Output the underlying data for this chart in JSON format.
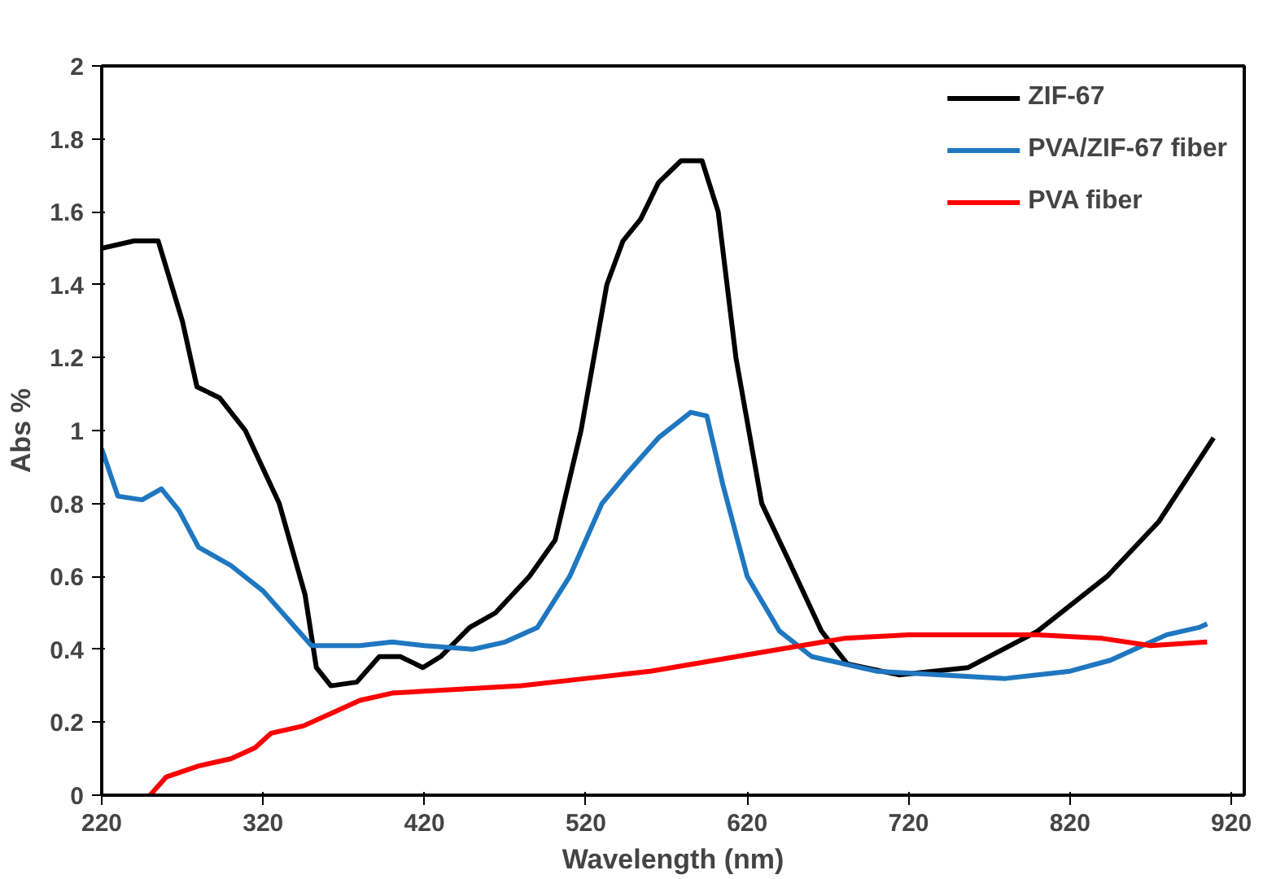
{
  "chart_data": {
    "type": "line",
    "xlabel": "Wavelength (nm)",
    "ylabel": "Abs %",
    "xlim": [
      220,
      928
    ],
    "xticks": [
      220,
      320,
      420,
      520,
      620,
      720,
      820,
      920
    ],
    "ylim": [
      0,
      2
    ],
    "yticks": [
      0,
      {
        "value": 0.2,
        "label": "0.2"
      },
      {
        "value": 0.4,
        "label": "0.4"
      },
      {
        "value": 0.6,
        "label": "0.6"
      },
      {
        "value": 0.8,
        "label": "0.8"
      },
      1,
      {
        "value": 1.2,
        "label": "1.2"
      },
      {
        "value": 1.4,
        "label": "1.4"
      },
      {
        "value": 1.6,
        "label": "1.6"
      },
      {
        "value": 1.8,
        "label": "1.8"
      },
      2
    ],
    "grid": false,
    "legend": "top right",
    "line_style": "solid",
    "marker": "none",
    "series": [
      {
        "name": "ZIF-67",
        "color": "#000000",
        "x": [
          220,
          240,
          255,
          270,
          279,
          293,
          309,
          330,
          346,
          353,
          362,
          378,
          392,
          405,
          419,
          430,
          448,
          464,
          485,
          501,
          517,
          533,
          543,
          554,
          565,
          579,
          592,
          602,
          613,
          629,
          645,
          666,
          682,
          714,
          757,
          800,
          843,
          875,
          909
        ],
        "values": [
          1.5,
          1.52,
          1.52,
          1.3,
          1.12,
          1.09,
          1.0,
          0.8,
          0.55,
          0.35,
          0.3,
          0.31,
          0.38,
          0.38,
          0.35,
          0.38,
          0.46,
          0.5,
          0.6,
          0.7,
          1.0,
          1.4,
          1.52,
          1.58,
          1.68,
          1.74,
          1.74,
          1.6,
          1.2,
          0.8,
          0.65,
          0.45,
          0.36,
          0.33,
          0.35,
          0.45,
          0.6,
          0.75,
          0.98
        ]
      },
      {
        "name": "PVA/ZIF-67 fiber",
        "color": "#1f77c0",
        "x": [
          220,
          230,
          245,
          257,
          268,
          280,
          300,
          320,
          340,
          350,
          380,
          400,
          420,
          450,
          470,
          490,
          510,
          530,
          545,
          565,
          585,
          595,
          605,
          620,
          640,
          660,
          700,
          780,
          820,
          845,
          860,
          880,
          900,
          905
        ],
        "values": [
          0.95,
          0.82,
          0.81,
          0.84,
          0.78,
          0.68,
          0.63,
          0.56,
          0.46,
          0.41,
          0.41,
          0.42,
          0.41,
          0.4,
          0.42,
          0.46,
          0.6,
          0.8,
          0.88,
          0.98,
          1.05,
          1.04,
          0.85,
          0.6,
          0.45,
          0.38,
          0.34,
          0.32,
          0.34,
          0.37,
          0.4,
          0.44,
          0.46,
          0.47
        ]
      },
      {
        "name": "PVA fiber",
        "color": "#ff0000",
        "x": [
          250,
          260,
          280,
          300,
          315,
          325,
          345,
          365,
          380,
          400,
          440,
          480,
          520,
          560,
          600,
          640,
          680,
          720,
          760,
          800,
          840,
          870,
          905
        ],
        "values": [
          0,
          0.05,
          0.08,
          0.1,
          0.13,
          0.17,
          0.19,
          0.23,
          0.26,
          0.28,
          0.29,
          0.3,
          0.32,
          0.34,
          0.37,
          0.4,
          0.43,
          0.44,
          0.44,
          0.44,
          0.43,
          0.41,
          0.42
        ]
      }
    ]
  }
}
